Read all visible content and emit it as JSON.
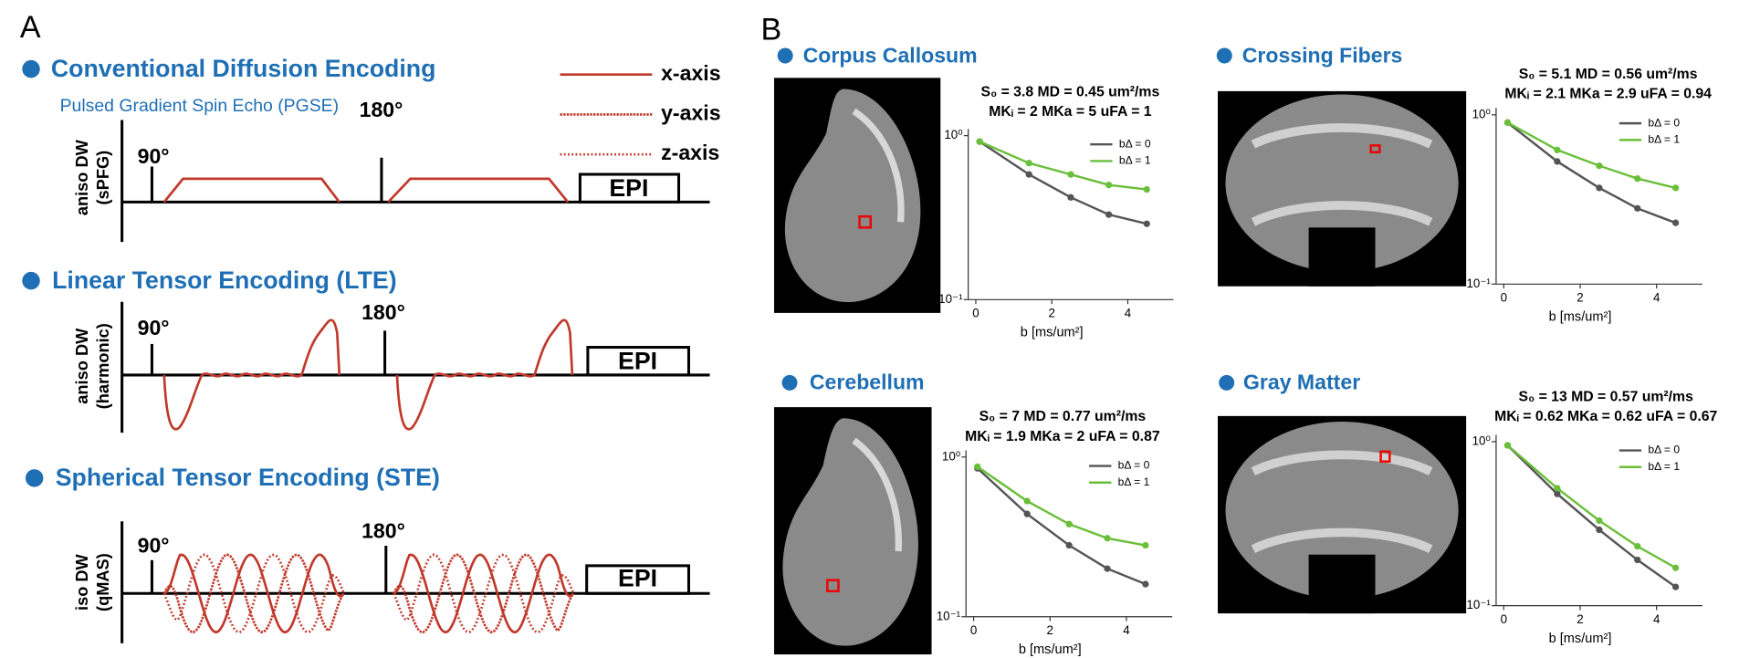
{
  "panel_a": {
    "label": "A",
    "legend": [
      "x-axis",
      "y-axis",
      "z-axis"
    ],
    "sections": [
      {
        "title": "Conventional Diffusion Encoding",
        "subtitle": "Pulsed Gradient Spin Echo (PGSE)",
        "pulse_1": "90°",
        "pulse_2": "180°",
        "readout": "EPI",
        "ylabel": [
          "aniso DW",
          "(sPFG)"
        ]
      },
      {
        "title": "Linear Tensor Encoding (LTE)",
        "pulse_1": "90°",
        "pulse_2": "180°",
        "readout": "EPI",
        "ylabel": [
          "aniso DW",
          "(harmonic)"
        ]
      },
      {
        "title": "Spherical Tensor Encoding (STE)",
        "pulse_1": "90°",
        "pulse_2": "180°",
        "readout": "EPI",
        "ylabel": [
          "iso DW",
          "(qMAS)"
        ]
      }
    ]
  },
  "panel_b": {
    "label": "B"
  },
  "chart_data": [
    {
      "type": "line",
      "title": "Corpus Callosum",
      "annotations": [
        "S₀ = 3.8   MD = 0.45 um²/ms",
        "MKᵢ = 2   MKa = 5   uFA = 1"
      ],
      "x": [
        0.1,
        1.4,
        2.5,
        3.5,
        4.5
      ],
      "series": [
        {
          "name": "bΔ = 0",
          "color": "#555555",
          "values": [
            0.92,
            0.58,
            0.42,
            0.33,
            0.29
          ]
        },
        {
          "name": "bΔ = 1",
          "color": "#6abf3a",
          "values": [
            0.92,
            0.68,
            0.58,
            0.5,
            0.47
          ]
        }
      ],
      "xlabel": "b [ms/um²]",
      "xlim": [
        -0.2,
        5.2
      ],
      "xticks": [
        0,
        2,
        4
      ],
      "ylim": [
        0.1,
        1.1
      ],
      "log_y": true,
      "yticks": [
        {
          "value": 0.1,
          "label": "10⁻¹"
        },
        {
          "value": 1,
          "label": "10⁰"
        }
      ],
      "legend": "upper right"
    },
    {
      "type": "line",
      "title": "Crossing Fibers",
      "annotations": [
        "S₀ = 5.1   MD = 0.56 um²/ms",
        "MKᵢ = 2.1   MKa = 2.9   uFA = 0.94"
      ],
      "x": [
        0.1,
        1.4,
        2.5,
        3.5,
        4.5
      ],
      "series": [
        {
          "name": "bΔ = 0",
          "color": "#555555",
          "values": [
            0.9,
            0.53,
            0.37,
            0.28,
            0.23
          ]
        },
        {
          "name": "bΔ = 1",
          "color": "#6abf3a",
          "values": [
            0.9,
            0.62,
            0.5,
            0.42,
            0.37
          ]
        }
      ],
      "xlabel": "b [ms/um²]",
      "xlim": [
        -0.2,
        5.2
      ],
      "xticks": [
        0,
        2,
        4
      ],
      "ylim": [
        0.1,
        1.1
      ],
      "log_y": true,
      "yticks": [
        {
          "value": 0.1,
          "label": "10⁻¹"
        },
        {
          "value": 1,
          "label": "10⁰"
        }
      ],
      "legend": "upper right"
    },
    {
      "type": "line",
      "title": "Cerebellum",
      "annotations": [
        "S₀ = 7   MD = 0.77 um²/ms",
        "MKᵢ = 1.9   MKa = 2   uFA = 0.87"
      ],
      "x": [
        0.1,
        1.4,
        2.5,
        3.5,
        4.5
      ],
      "series": [
        {
          "name": "bΔ = 0",
          "color": "#555555",
          "values": [
            0.85,
            0.44,
            0.28,
            0.2,
            0.16
          ]
        },
        {
          "name": "bΔ = 1",
          "color": "#6abf3a",
          "values": [
            0.87,
            0.53,
            0.38,
            0.31,
            0.28
          ]
        }
      ],
      "xlabel": "b [ms/um²]",
      "xlim": [
        -0.2,
        5.2
      ],
      "xticks": [
        0,
        2,
        4
      ],
      "ylim": [
        0.1,
        1.1
      ],
      "log_y": true,
      "yticks": [
        {
          "value": 0.1,
          "label": "10⁻¹"
        },
        {
          "value": 1,
          "label": "10⁰"
        }
      ],
      "legend": "upper right"
    },
    {
      "type": "line",
      "title": "Gray Matter",
      "annotations": [
        "S₀ = 13   MD = 0.57 um²/ms",
        "MKᵢ = 0.62   MKa = 0.62   uFA = 0.67"
      ],
      "x": [
        0.1,
        1.4,
        2.5,
        3.5,
        4.5
      ],
      "series": [
        {
          "name": "bΔ = 0",
          "color": "#555555",
          "values": [
            0.95,
            0.48,
            0.29,
            0.19,
            0.13
          ]
        },
        {
          "name": "bΔ = 1",
          "color": "#6abf3a",
          "values": [
            0.95,
            0.52,
            0.33,
            0.23,
            0.17
          ]
        }
      ],
      "xlabel": "b [ms/um²]",
      "xlim": [
        -0.2,
        5.2
      ],
      "xticks": [
        0,
        2,
        4
      ],
      "ylim": [
        0.1,
        1.1
      ],
      "log_y": true,
      "yticks": [
        {
          "value": 0.1,
          "label": "10⁻¹"
        },
        {
          "value": 1,
          "label": "10⁰"
        }
      ],
      "legend": "upper right"
    }
  ]
}
